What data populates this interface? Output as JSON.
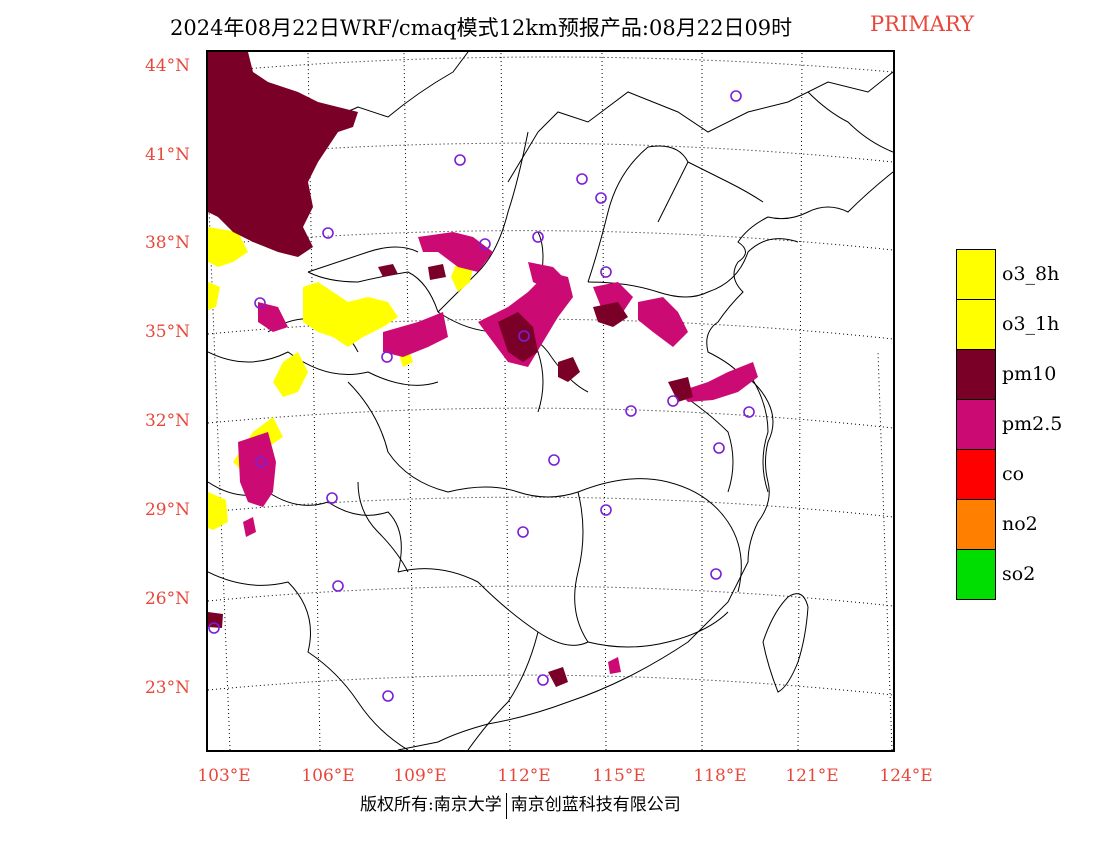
{
  "header": {
    "title": "2024年08月22日WRF/cmaq模式12km预报产品:08月22日09时",
    "tag": "PRIMARY"
  },
  "map": {
    "lat_labels": [
      "44°N",
      "41°N",
      "38°N",
      "35°N",
      "32°N",
      "29°N",
      "26°N",
      "23°N"
    ],
    "lon_labels": [
      "103°E",
      "106°E",
      "109°E",
      "112°E",
      "115°E",
      "118°E",
      "121°E",
      "124°E"
    ]
  },
  "legend": {
    "items": [
      {
        "label": "o3_8h",
        "color": "#ffff00"
      },
      {
        "label": "o3_1h",
        "color": "#ffff00"
      },
      {
        "label": "pm10",
        "color": "#7a0028"
      },
      {
        "label": "pm2.5",
        "color": "#cc0a73"
      },
      {
        "label": "co",
        "color": "#ff0000"
      },
      {
        "label": "no2",
        "color": "#ff7f00"
      },
      {
        "label": "so2",
        "color": "#00dd00"
      }
    ]
  },
  "footer": {
    "left": "版权所有:南京大学",
    "right": "南京创蓝科技有限公司"
  }
}
